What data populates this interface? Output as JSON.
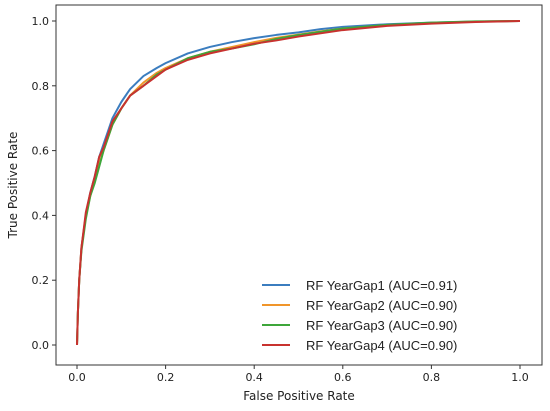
{
  "chart_data": {
    "type": "line",
    "title": "",
    "xlabel": "False Positive Rate",
    "ylabel": "True Positive Rate",
    "xlim": [
      0.0,
      1.0
    ],
    "ylim": [
      0.0,
      1.0
    ],
    "xticks": [
      "0.0",
      "0.2",
      "0.4",
      "0.6",
      "0.8",
      "1.0"
    ],
    "yticks": [
      "0.0",
      "0.2",
      "0.4",
      "0.6",
      "0.8",
      "1.0"
    ],
    "grid": false,
    "legend_position": "lower-right",
    "series": [
      {
        "name": "RF YearGap1 (AUC=0.91)",
        "color": "#3b7dbf",
        "points": [
          [
            0,
            0
          ],
          [
            0.002,
            0.1
          ],
          [
            0.005,
            0.2
          ],
          [
            0.01,
            0.3
          ],
          [
            0.02,
            0.4
          ],
          [
            0.03,
            0.47
          ],
          [
            0.04,
            0.52
          ],
          [
            0.05,
            0.58
          ],
          [
            0.06,
            0.62
          ],
          [
            0.07,
            0.66
          ],
          [
            0.08,
            0.7
          ],
          [
            0.1,
            0.75
          ],
          [
            0.12,
            0.79
          ],
          [
            0.15,
            0.83
          ],
          [
            0.18,
            0.855
          ],
          [
            0.2,
            0.87
          ],
          [
            0.25,
            0.9
          ],
          [
            0.3,
            0.92
          ],
          [
            0.35,
            0.935
          ],
          [
            0.4,
            0.947
          ],
          [
            0.45,
            0.957
          ],
          [
            0.5,
            0.965
          ],
          [
            0.55,
            0.975
          ],
          [
            0.6,
            0.982
          ],
          [
            0.7,
            0.99
          ],
          [
            0.8,
            0.995
          ],
          [
            0.9,
            0.998
          ],
          [
            1.0,
            1.0
          ]
        ]
      },
      {
        "name": "RF YearGap2 (AUC=0.90)",
        "color": "#f0952a",
        "points": [
          [
            0,
            0
          ],
          [
            0.002,
            0.1
          ],
          [
            0.005,
            0.2
          ],
          [
            0.01,
            0.3
          ],
          [
            0.02,
            0.4
          ],
          [
            0.03,
            0.46
          ],
          [
            0.04,
            0.51
          ],
          [
            0.05,
            0.56
          ],
          [
            0.06,
            0.6
          ],
          [
            0.07,
            0.64
          ],
          [
            0.08,
            0.68
          ],
          [
            0.1,
            0.73
          ],
          [
            0.12,
            0.77
          ],
          [
            0.15,
            0.81
          ],
          [
            0.18,
            0.84
          ],
          [
            0.2,
            0.855
          ],
          [
            0.25,
            0.885
          ],
          [
            0.3,
            0.905
          ],
          [
            0.35,
            0.92
          ],
          [
            0.4,
            0.935
          ],
          [
            0.45,
            0.948
          ],
          [
            0.5,
            0.958
          ],
          [
            0.55,
            0.968
          ],
          [
            0.6,
            0.977
          ],
          [
            0.7,
            0.987
          ],
          [
            0.8,
            0.994
          ],
          [
            0.9,
            0.998
          ],
          [
            1.0,
            1.0
          ]
        ]
      },
      {
        "name": "RF YearGap3 (AUC=0.90)",
        "color": "#3ea63a",
        "points": [
          [
            0,
            0
          ],
          [
            0.002,
            0.1
          ],
          [
            0.005,
            0.2
          ],
          [
            0.01,
            0.29
          ],
          [
            0.02,
            0.39
          ],
          [
            0.03,
            0.46
          ],
          [
            0.04,
            0.5
          ],
          [
            0.05,
            0.55
          ],
          [
            0.06,
            0.6
          ],
          [
            0.07,
            0.64
          ],
          [
            0.08,
            0.68
          ],
          [
            0.1,
            0.73
          ],
          [
            0.12,
            0.77
          ],
          [
            0.15,
            0.8
          ],
          [
            0.18,
            0.835
          ],
          [
            0.2,
            0.85
          ],
          [
            0.25,
            0.885
          ],
          [
            0.3,
            0.905
          ],
          [
            0.35,
            0.915
          ],
          [
            0.4,
            0.928
          ],
          [
            0.45,
            0.945
          ],
          [
            0.5,
            0.957
          ],
          [
            0.55,
            0.967
          ],
          [
            0.6,
            0.977
          ],
          [
            0.7,
            0.988
          ],
          [
            0.8,
            0.995
          ],
          [
            0.9,
            0.999
          ],
          [
            1.0,
            1.0
          ]
        ]
      },
      {
        "name": "RF YearGap4 (AUC=0.90)",
        "color": "#c8322f",
        "points": [
          [
            0,
            0
          ],
          [
            0.002,
            0.1
          ],
          [
            0.005,
            0.2
          ],
          [
            0.01,
            0.3
          ],
          [
            0.02,
            0.41
          ],
          [
            0.03,
            0.47
          ],
          [
            0.04,
            0.52
          ],
          [
            0.05,
            0.58
          ],
          [
            0.06,
            0.61
          ],
          [
            0.07,
            0.65
          ],
          [
            0.08,
            0.69
          ],
          [
            0.1,
            0.73
          ],
          [
            0.12,
            0.77
          ],
          [
            0.15,
            0.8
          ],
          [
            0.18,
            0.83
          ],
          [
            0.2,
            0.85
          ],
          [
            0.25,
            0.88
          ],
          [
            0.3,
            0.9
          ],
          [
            0.35,
            0.915
          ],
          [
            0.4,
            0.93
          ],
          [
            0.45,
            0.94
          ],
          [
            0.5,
            0.952
          ],
          [
            0.55,
            0.962
          ],
          [
            0.6,
            0.972
          ],
          [
            0.7,
            0.985
          ],
          [
            0.8,
            0.992
          ],
          [
            0.9,
            0.997
          ],
          [
            1.0,
            1.0
          ]
        ]
      }
    ]
  }
}
